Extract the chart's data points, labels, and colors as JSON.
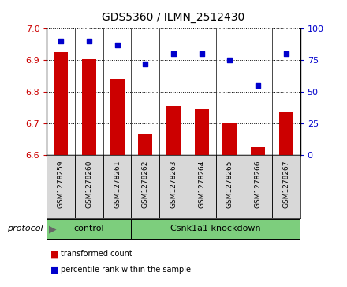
{
  "title": "GDS5360 / ILMN_2512430",
  "samples": [
    "GSM1278259",
    "GSM1278260",
    "GSM1278261",
    "GSM1278262",
    "GSM1278263",
    "GSM1278264",
    "GSM1278265",
    "GSM1278266",
    "GSM1278267"
  ],
  "transformed_count": [
    6.925,
    6.905,
    6.84,
    6.665,
    6.755,
    6.745,
    6.7,
    6.625,
    6.735
  ],
  "percentile_rank": [
    90,
    90,
    87,
    72,
    80,
    80,
    75,
    55,
    80
  ],
  "ylim_left": [
    6.6,
    7.0
  ],
  "ylim_right": [
    0,
    100
  ],
  "yticks_left": [
    6.6,
    6.7,
    6.8,
    6.9,
    7.0
  ],
  "yticks_right": [
    0,
    25,
    50,
    75,
    100
  ],
  "control_samples": [
    0,
    1,
    2
  ],
  "knockdown_samples": [
    3,
    4,
    5,
    6,
    7,
    8
  ],
  "bar_color": "#CC0000",
  "dot_color": "#0000CC",
  "bar_width": 0.5,
  "baseline": 6.6,
  "left_tick_color": "#CC0000",
  "right_tick_color": "#0000CC",
  "cell_bg": "#d8d8d8",
  "plot_bg": "#ffffff",
  "green_color": "#7dce7d",
  "title_fontsize": 10
}
